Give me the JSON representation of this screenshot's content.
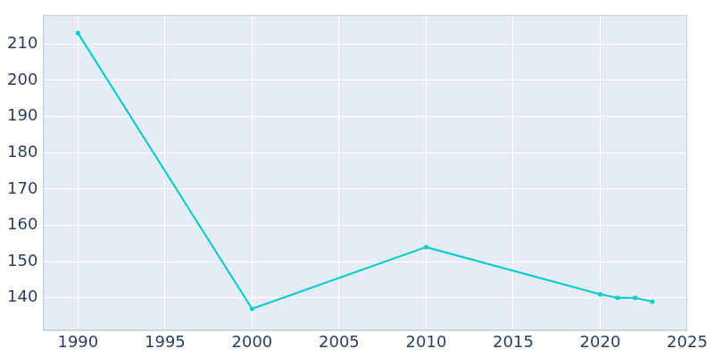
{
  "chart_data": {
    "type": "line",
    "x": [
      1990,
      2000,
      2010,
      2020,
      2021,
      2022,
      2023
    ],
    "values": [
      213,
      137,
      154,
      141,
      140,
      140,
      139
    ],
    "color": "#00cccc",
    "marker": "circle",
    "xlim": [
      1988,
      2025
    ],
    "xticks": [
      1990,
      1995,
      2000,
      2005,
      2010,
      2015,
      2020,
      2025
    ],
    "ylim": [
      131,
      218
    ],
    "yticks": [
      140,
      150,
      160,
      170,
      180,
      190,
      200,
      210
    ],
    "grid": true
  }
}
